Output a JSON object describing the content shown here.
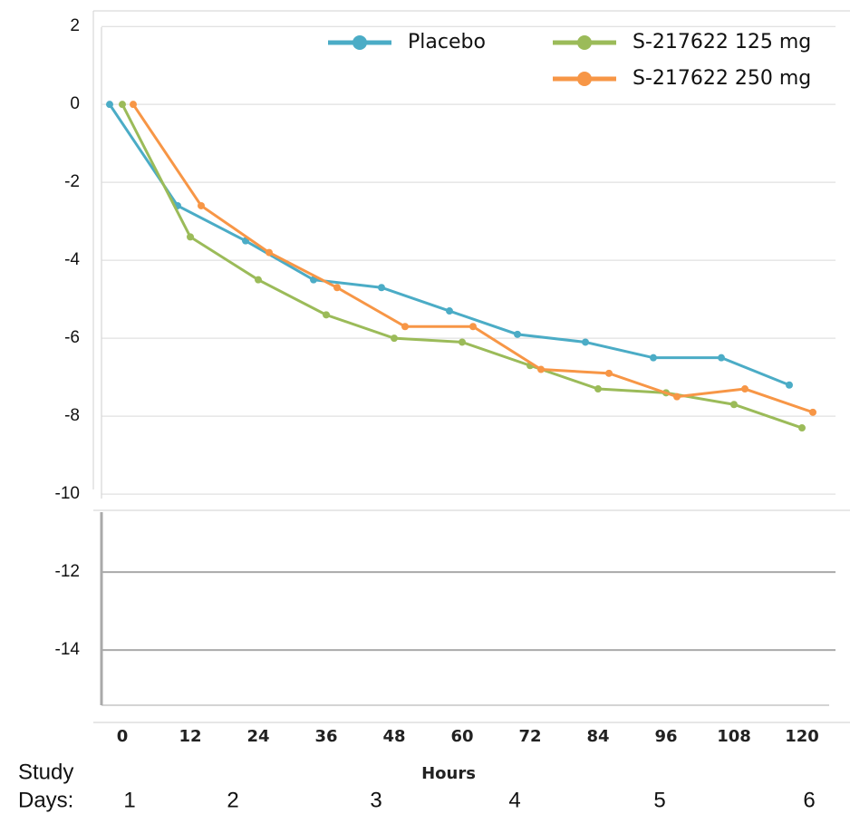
{
  "chart_data": {
    "type": "line",
    "x": [
      0,
      12,
      24,
      36,
      48,
      60,
      72,
      84,
      96,
      108,
      120
    ],
    "series": [
      {
        "name": "Placebo",
        "color": "#4bacc6",
        "values": [
          0,
          -2.6,
          -3.5,
          -4.5,
          -4.7,
          -5.3,
          -5.9,
          -6.1,
          -6.5,
          -6.5,
          -7.2
        ]
      },
      {
        "name": "S-217622 125 mg",
        "color": "#9bbb59",
        "values": [
          0,
          -3.4,
          -4.5,
          -5.4,
          -6.0,
          -6.1,
          -6.7,
          -7.3,
          -7.4,
          -7.7,
          -8.3
        ]
      },
      {
        "name": "S-217622 250 mg",
        "color": "#f79646",
        "values": [
          0,
          -2.6,
          -3.8,
          -4.7,
          -5.7,
          -5.7,
          -6.8,
          -6.9,
          -7.5,
          -7.3,
          -7.9
        ]
      }
    ],
    "xlim": [
      0,
      120
    ],
    "xticks": [
      0,
      12,
      24,
      36,
      48,
      60,
      72,
      84,
      96,
      108,
      120
    ],
    "ylim": [
      -15.3,
      2.4
    ],
    "yticks": [
      2,
      0,
      -2,
      -4,
      -6,
      -8,
      -10,
      -12,
      -14
    ],
    "xlabel": "Hours",
    "study_days_label": [
      "Study",
      "Days:"
    ],
    "study_days": [
      "1",
      "2",
      "3",
      "4",
      "5",
      "6"
    ],
    "grid": true
  }
}
